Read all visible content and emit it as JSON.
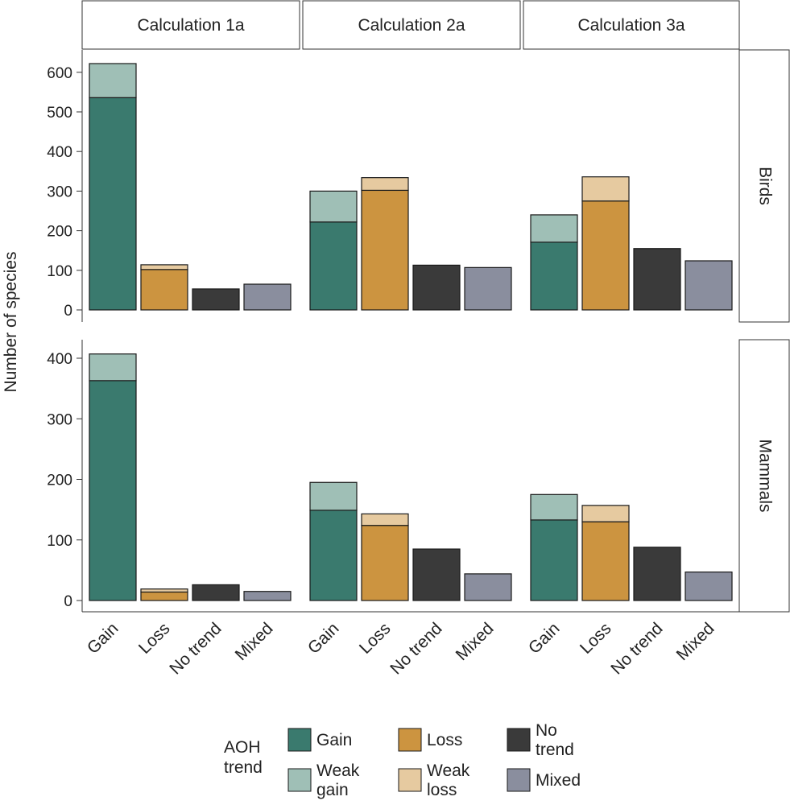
{
  "chart_data": {
    "type": "bar",
    "stacked": true,
    "ylabel": "Number of species",
    "columns": [
      "Calculation 1a",
      "Calculation 2a",
      "Calculation 3a"
    ],
    "rows": [
      "Birds",
      "Mammals"
    ],
    "categories": [
      "Gain",
      "Loss",
      "No trend",
      "Mixed"
    ],
    "ylim": {
      "Birds": [
        0,
        650
      ],
      "Mammals": [
        0,
        430
      ]
    },
    "yticks": {
      "Birds": [
        0,
        100,
        200,
        300,
        400,
        500,
        600
      ],
      "Mammals": [
        0,
        100,
        200,
        300,
        400
      ]
    },
    "colors": {
      "Gain": "#3a7a6e",
      "Weak gain": "#9fbfb6",
      "Loss": "#cc9440",
      "Weak loss": "#e6caa0",
      "No trend": "#3a3a3a",
      "Mixed": "#8a8e9e"
    },
    "panels": [
      {
        "row": "Birds",
        "column": "Calculation 1a",
        "values": {
          "Gain": 536,
          "Weak gain": 86,
          "Loss": 102,
          "Weak loss": 12,
          "No trend": 53,
          "Mixed": 65
        }
      },
      {
        "row": "Birds",
        "column": "Calculation 2a",
        "values": {
          "Gain": 222,
          "Weak gain": 78,
          "Loss": 302,
          "Weak loss": 32,
          "No trend": 113,
          "Mixed": 107
        }
      },
      {
        "row": "Birds",
        "column": "Calculation 3a",
        "values": {
          "Gain": 171,
          "Weak gain": 69,
          "Loss": 275,
          "Weak loss": 61,
          "No trend": 155,
          "Mixed": 124
        }
      },
      {
        "row": "Mammals",
        "column": "Calculation 1a",
        "values": {
          "Gain": 363,
          "Weak gain": 44,
          "Loss": 14,
          "Weak loss": 5,
          "No trend": 26,
          "Mixed": 15
        }
      },
      {
        "row": "Mammals",
        "column": "Calculation 2a",
        "values": {
          "Gain": 149,
          "Weak gain": 46,
          "Loss": 124,
          "Weak loss": 19,
          "No trend": 85,
          "Mixed": 44
        }
      },
      {
        "row": "Mammals",
        "column": "Calculation 3a",
        "values": {
          "Gain": 133,
          "Weak gain": 42,
          "Loss": 130,
          "Weak loss": 27,
          "No trend": 88,
          "Mixed": 47
        }
      }
    ],
    "legend": {
      "title": [
        "AOH",
        "trend"
      ],
      "position": "bottom",
      "items": [
        {
          "key": "Gain",
          "label": [
            "Gain"
          ]
        },
        {
          "key": "Weak gain",
          "label": [
            "Weak",
            "gain"
          ]
        },
        {
          "key": "Loss",
          "label": [
            "Loss"
          ]
        },
        {
          "key": "Weak loss",
          "label": [
            "Weak",
            "loss"
          ]
        },
        {
          "key": "No trend",
          "label": [
            "No",
            "trend"
          ]
        },
        {
          "key": "Mixed",
          "label": [
            "Mixed"
          ]
        }
      ]
    }
  }
}
